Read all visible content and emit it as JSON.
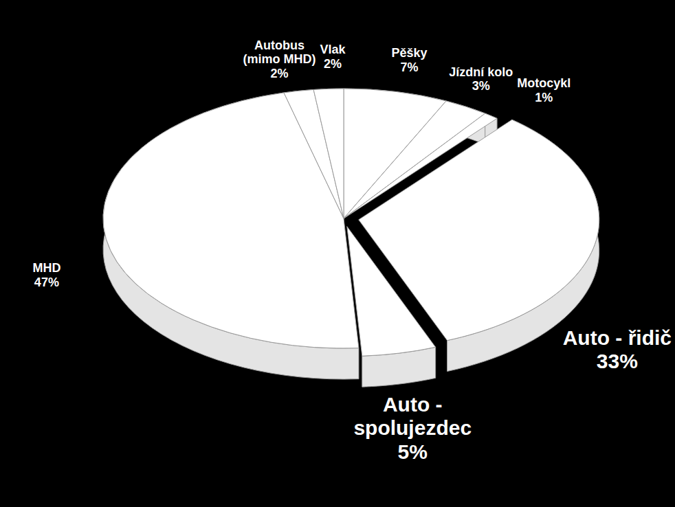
{
  "chart_data": {
    "type": "pie",
    "categories": [
      "Pěšky",
      "Jízdní kolo",
      "Motocykl",
      "Auto - řidič",
      "Auto - spolujezdec",
      "MHD",
      "Autobus (mimo MHD)",
      "Vlak"
    ],
    "values": [
      7,
      3,
      1,
      33,
      5,
      47,
      2,
      2
    ],
    "value_labels": [
      "7%",
      "3%",
      "1%",
      "33%",
      "5%",
      "47%",
      "2%",
      "2%"
    ],
    "color": "#ffffff",
    "data_labels": true
  }
}
